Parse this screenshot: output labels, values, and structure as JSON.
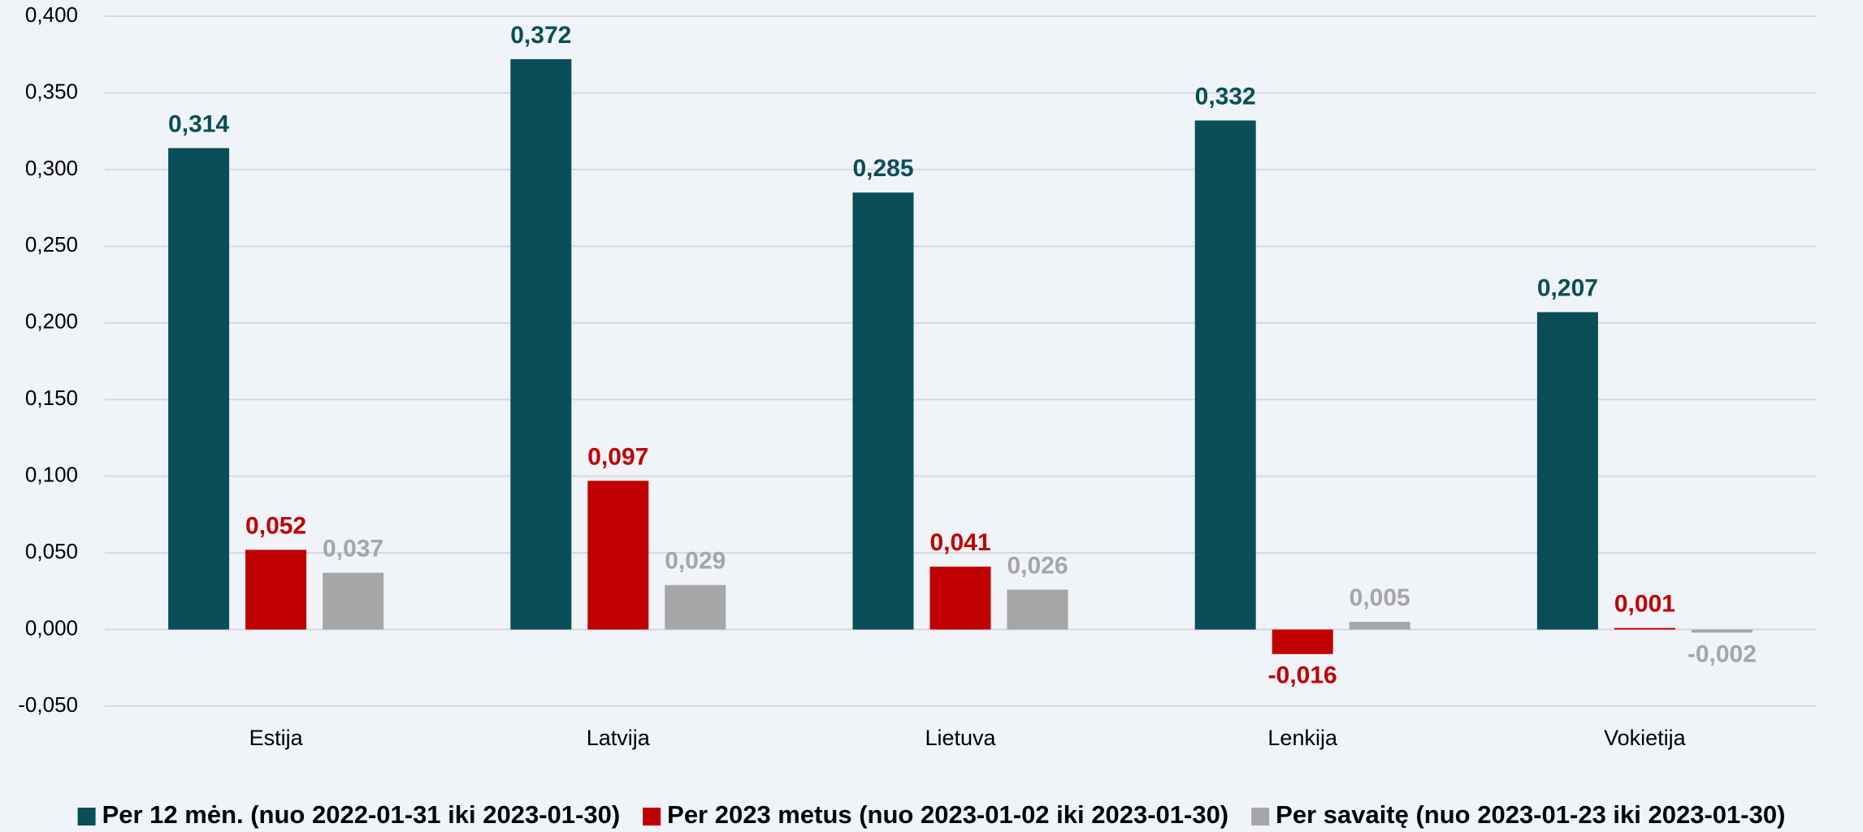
{
  "chart_data": {
    "type": "bar",
    "categories": [
      "Estija",
      "Latvija",
      "Lietuva",
      "Lenkija",
      "Vokietija"
    ],
    "series": [
      {
        "name": "Per 12 mėn. (nuo 2022-01-31 iki 2023-01-30)",
        "color": "#0a4f57",
        "values": [
          0.314,
          0.372,
          0.285,
          0.332,
          0.207
        ],
        "value_labels": [
          "0,314",
          "0,372",
          "0,285",
          "0,332",
          "0,207"
        ]
      },
      {
        "name": "Per 2023 metus (nuo 2023-01-02 iki 2023-01-30)",
        "color": "#c00000",
        "values": [
          0.052,
          0.097,
          0.041,
          -0.016,
          0.001
        ],
        "value_labels": [
          "0,052",
          "0,097",
          "0,041",
          "-0,016",
          "0,001"
        ]
      },
      {
        "name": "Per savaitę (nuo 2023-01-23 iki 2023-01-30)",
        "color": "#a6a6a6",
        "values": [
          0.037,
          0.029,
          0.026,
          0.005,
          -0.002
        ],
        "value_labels": [
          "0,037",
          "0,029",
          "0,026",
          "0,005",
          "-0,002"
        ]
      }
    ],
    "ylim": [
      -0.05,
      0.4
    ],
    "yticks": [
      {
        "value": -0.05,
        "label": "-0,050"
      },
      {
        "value": 0,
        "label": "0,000"
      },
      {
        "value": 0.05,
        "label": "0,050"
      },
      {
        "value": 0.1,
        "label": "0,100"
      },
      {
        "value": 0.15,
        "label": "0,150"
      },
      {
        "value": 0.2,
        "label": "0,200"
      },
      {
        "value": 0.25,
        "label": "0,250"
      },
      {
        "value": 0.3,
        "label": "0,300"
      },
      {
        "value": 0.35,
        "label": "0,350"
      },
      {
        "value": 0.4,
        "label": "0,400"
      }
    ],
    "grid": true,
    "legend": "bottom"
  }
}
